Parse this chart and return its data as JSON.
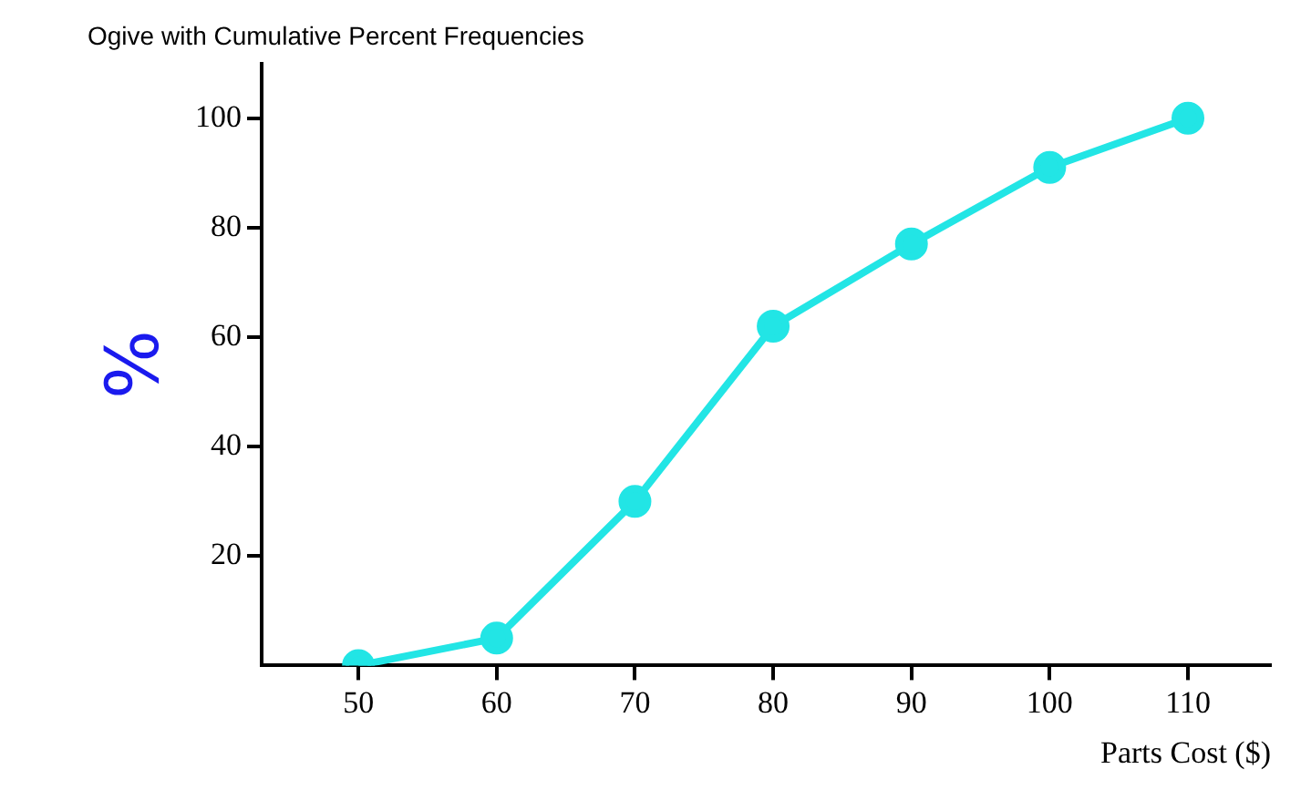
{
  "chart_data": {
    "type": "line",
    "title": "Ogive with Cumulative Percent Frequencies",
    "xlabel": "Parts Cost ($)",
    "ylabel": "%",
    "x": [
      50,
      60,
      70,
      80,
      90,
      100,
      110
    ],
    "series": [
      {
        "color": "#22e5e5",
        "values": [
          0,
          5,
          30,
          62,
          77,
          91,
          100
        ]
      }
    ],
    "xlim": [
      43,
      116
    ],
    "xticks": [
      50,
      60,
      70,
      80,
      90,
      100,
      110
    ],
    "ylim": [
      0,
      110
    ],
    "yticks": [
      20,
      40,
      60,
      80,
      100
    ],
    "grid": false,
    "legend": false,
    "marker": "circle",
    "line_style": "solid"
  }
}
